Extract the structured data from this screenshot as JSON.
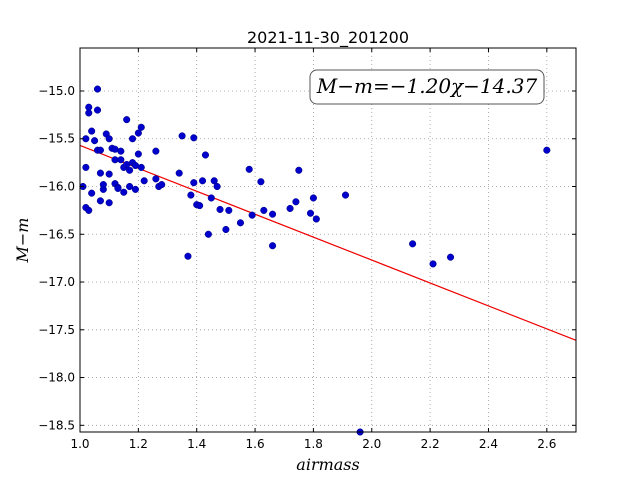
{
  "chart_data": {
    "type": "scatter",
    "title": "2021-11-30_201200",
    "xlabel": "airmass",
    "ylabel": "M−m",
    "xlim": [
      1.0,
      2.7
    ],
    "ylim": [
      -18.57,
      -14.55
    ],
    "y_inverted": true,
    "x_ticks": [
      1.0,
      1.2,
      1.4,
      1.6,
      1.8,
      2.0,
      2.2,
      2.4,
      2.6
    ],
    "x_tick_labels": [
      "1.0",
      "1.2",
      "1.4",
      "1.6",
      "1.8",
      "2.0",
      "2.2",
      "2.4",
      "2.6"
    ],
    "y_ticks": [
      -15.0,
      -15.5,
      -16.0,
      -16.5,
      -17.0,
      -17.5,
      -18.0,
      -18.5
    ],
    "y_tick_labels": [
      "−15.0",
      "−15.5",
      "−16.0",
      "−16.5",
      "−17.0",
      "−17.5",
      "−18.0",
      "−18.5"
    ],
    "grid": true,
    "annotation": "M−m=−1.20χ−14.37",
    "fit": {
      "slope": -1.2,
      "intercept": -14.37
    },
    "colors": {
      "points": "#0000cc",
      "fit_line": "#ee0000"
    },
    "points": {
      "x": [
        1.01,
        1.02,
        1.02,
        1.02,
        1.03,
        1.03,
        1.03,
        1.04,
        1.04,
        1.05,
        1.06,
        1.06,
        1.06,
        1.07,
        1.07,
        1.07,
        1.08,
        1.08,
        1.09,
        1.1,
        1.1,
        1.1,
        1.11,
        1.12,
        1.12,
        1.12,
        1.13,
        1.13,
        1.14,
        1.14,
        1.15,
        1.15,
        1.16,
        1.16,
        1.17,
        1.17,
        1.18,
        1.18,
        1.19,
        1.19,
        1.2,
        1.2,
        1.21,
        1.21,
        1.22,
        1.26,
        1.26,
        1.27,
        1.28,
        1.34,
        1.35,
        1.37,
        1.38,
        1.39,
        1.39,
        1.4,
        1.41,
        1.42,
        1.43,
        1.44,
        1.45,
        1.46,
        1.47,
        1.48,
        1.5,
        1.51,
        1.55,
        1.58,
        1.59,
        1.62,
        1.63,
        1.66,
        1.66,
        1.72,
        1.74,
        1.75,
        1.79,
        1.8,
        1.81,
        1.91,
        1.96,
        2.14,
        2.21,
        2.27,
        2.6
      ],
      "y": [
        -16.0,
        -15.8,
        -16.22,
        -15.5,
        -16.25,
        -15.17,
        -15.23,
        -15.42,
        -16.07,
        -15.52,
        -15.62,
        -14.98,
        -15.2,
        -15.62,
        -15.86,
        -16.15,
        -16.03,
        -15.98,
        -15.45,
        -15.5,
        -16.17,
        -15.87,
        -15.6,
        -15.97,
        -15.72,
        -15.61,
        -16.01,
        -16.02,
        -15.72,
        -15.63,
        -16.06,
        -15.8,
        -15.3,
        -15.77,
        -15.83,
        -16.0,
        -15.5,
        -15.75,
        -16.03,
        -15.78,
        -15.66,
        -15.44,
        -15.38,
        -15.8,
        -15.94,
        -15.92,
        -15.63,
        -16.0,
        -15.98,
        -15.86,
        -15.47,
        -16.73,
        -16.09,
        -15.96,
        -15.49,
        -16.19,
        -16.2,
        -15.94,
        -15.67,
        -16.5,
        -16.12,
        -15.94,
        -16.0,
        -16.24,
        -16.45,
        -16.25,
        -16.38,
        -15.82,
        -16.3,
        -15.95,
        -16.25,
        -16.29,
        -16.62,
        -16.23,
        -16.16,
        -15.83,
        -16.28,
        -16.12,
        -16.34,
        -16.09,
        -18.57,
        -16.6,
        -16.81,
        -16.74,
        -15.62
      ]
    }
  }
}
